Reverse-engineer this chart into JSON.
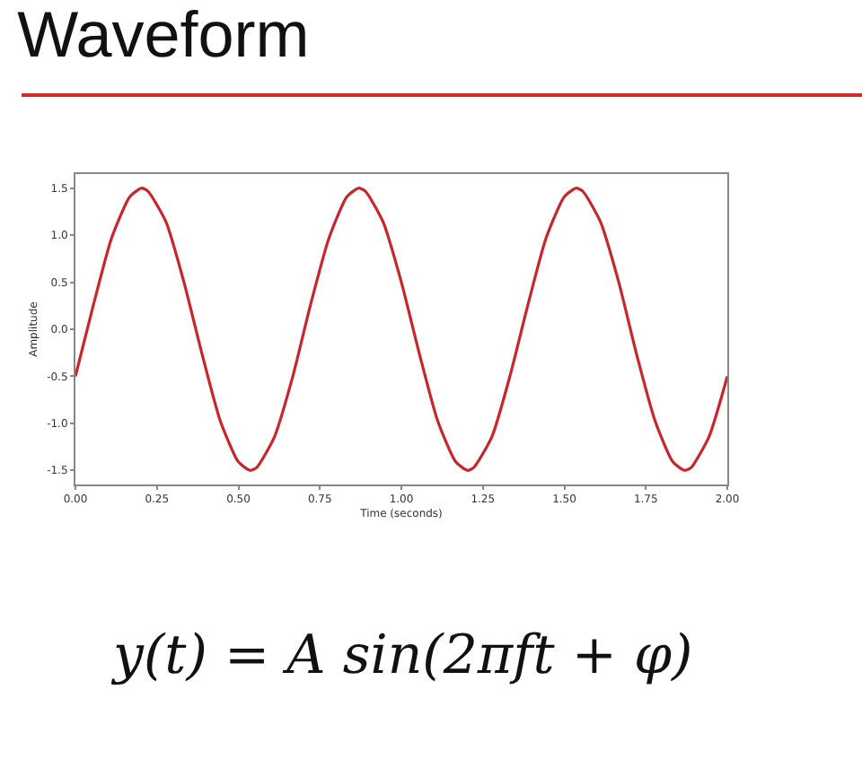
{
  "chart_data": {
    "type": "line",
    "title": "Waveform",
    "xlabel": "Time (seconds)",
    "ylabel": "Amplitude",
    "annotations": [
      "y(t) = A sin(2πft + φ)"
    ],
    "x": [
      0,
      0.056,
      0.111,
      0.167,
      0.203,
      0.222,
      0.278,
      0.333,
      0.389,
      0.444,
      0.5,
      0.536,
      0.556,
      0.611,
      0.667,
      0.722,
      0.778,
      0.833,
      0.869,
      0.889,
      0.944,
      1,
      1.056,
      1.111,
      1.167,
      1.203,
      1.222,
      1.278,
      1.333,
      1.389,
      1.444,
      1.5,
      1.536,
      1.556,
      1.611,
      1.667,
      1.722,
      1.778,
      1.833,
      1.869,
      1.889,
      1.944,
      2
    ],
    "series": [
      {
        "color": "#c8252c",
        "values": [
          -0.5,
          0.27,
          0.97,
          1.41,
          1.5,
          1.47,
          1.14,
          0.5,
          -0.27,
          -0.97,
          -1.41,
          -1.5,
          -1.47,
          -1.14,
          -0.5,
          0.27,
          0.97,
          1.41,
          1.5,
          1.47,
          1.14,
          0.5,
          -0.27,
          -0.97,
          -1.41,
          -1.5,
          -1.47,
          -1.14,
          -0.5,
          0.27,
          0.97,
          1.41,
          1.5,
          1.47,
          1.14,
          0.5,
          -0.27,
          -0.97,
          -1.41,
          -1.5,
          -1.47,
          -1.14,
          -0.5
        ]
      }
    ],
    "xlim": [
      0,
      2
    ],
    "xticks": [
      {
        "value": 0,
        "label": "0.00"
      },
      {
        "value": 0.25,
        "label": "0.25"
      },
      {
        "value": 0.5,
        "label": "0.50"
      },
      {
        "value": 0.75,
        "label": "0.75"
      },
      {
        "value": 1,
        "label": "1.00"
      },
      {
        "value": 1.25,
        "label": "1.25"
      },
      {
        "value": 1.5,
        "label": "1.50"
      },
      {
        "value": 1.75,
        "label": "1.75"
      },
      {
        "value": 2,
        "label": "2.00"
      }
    ],
    "ylim": [
      -1.65,
      1.65
    ],
    "yticks": [
      -1.5,
      {
        "value": -1,
        "label": "-1.0"
      },
      {
        "value": -0.5,
        "label": "-0.5"
      },
      {
        "value": 0,
        "label": "0.0"
      },
      0.5,
      {
        "value": 1,
        "label": "1.0"
      },
      1.5
    ],
    "grid": false,
    "line_style": "solid",
    "marker": "none"
  }
}
